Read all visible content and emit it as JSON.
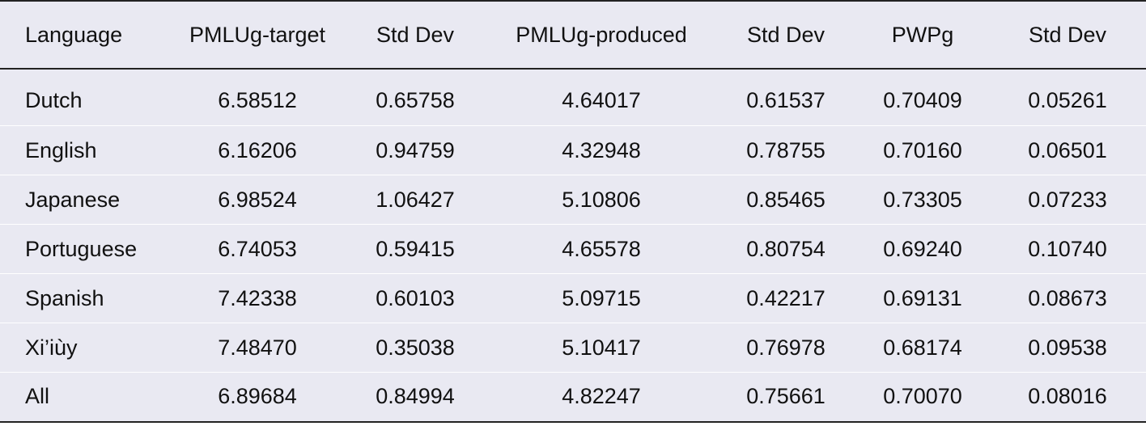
{
  "table": {
    "headers": [
      "Language",
      "PMLUg-target",
      "Std Dev",
      "PMLUg-produced",
      "Std Dev",
      "PWPg",
      "Std Dev"
    ],
    "rows": [
      [
        "Dutch",
        "6.58512",
        "0.65758",
        "4.64017",
        "0.61537",
        "0.70409",
        "0.05261"
      ],
      [
        "English",
        "6.16206",
        "0.94759",
        "4.32948",
        "0.78755",
        "0.70160",
        "0.06501"
      ],
      [
        "Japanese",
        "6.98524",
        "1.06427",
        "5.10806",
        "0.85465",
        "0.73305",
        "0.07233"
      ],
      [
        "Portuguese",
        "6.74053",
        "0.59415",
        "4.65578",
        "0.80754",
        "0.69240",
        "0.10740"
      ],
      [
        "Spanish",
        "7.42338",
        "0.60103",
        "5.09715",
        "0.42217",
        "0.69131",
        "0.08673"
      ],
      [
        "Xi’iùy",
        "7.48470",
        "0.35038",
        "5.10417",
        "0.76978",
        "0.68174",
        "0.09538"
      ],
      [
        "All",
        "6.89684",
        "0.84994",
        "4.82247",
        "0.75661",
        "0.70070",
        "0.08016"
      ]
    ]
  }
}
